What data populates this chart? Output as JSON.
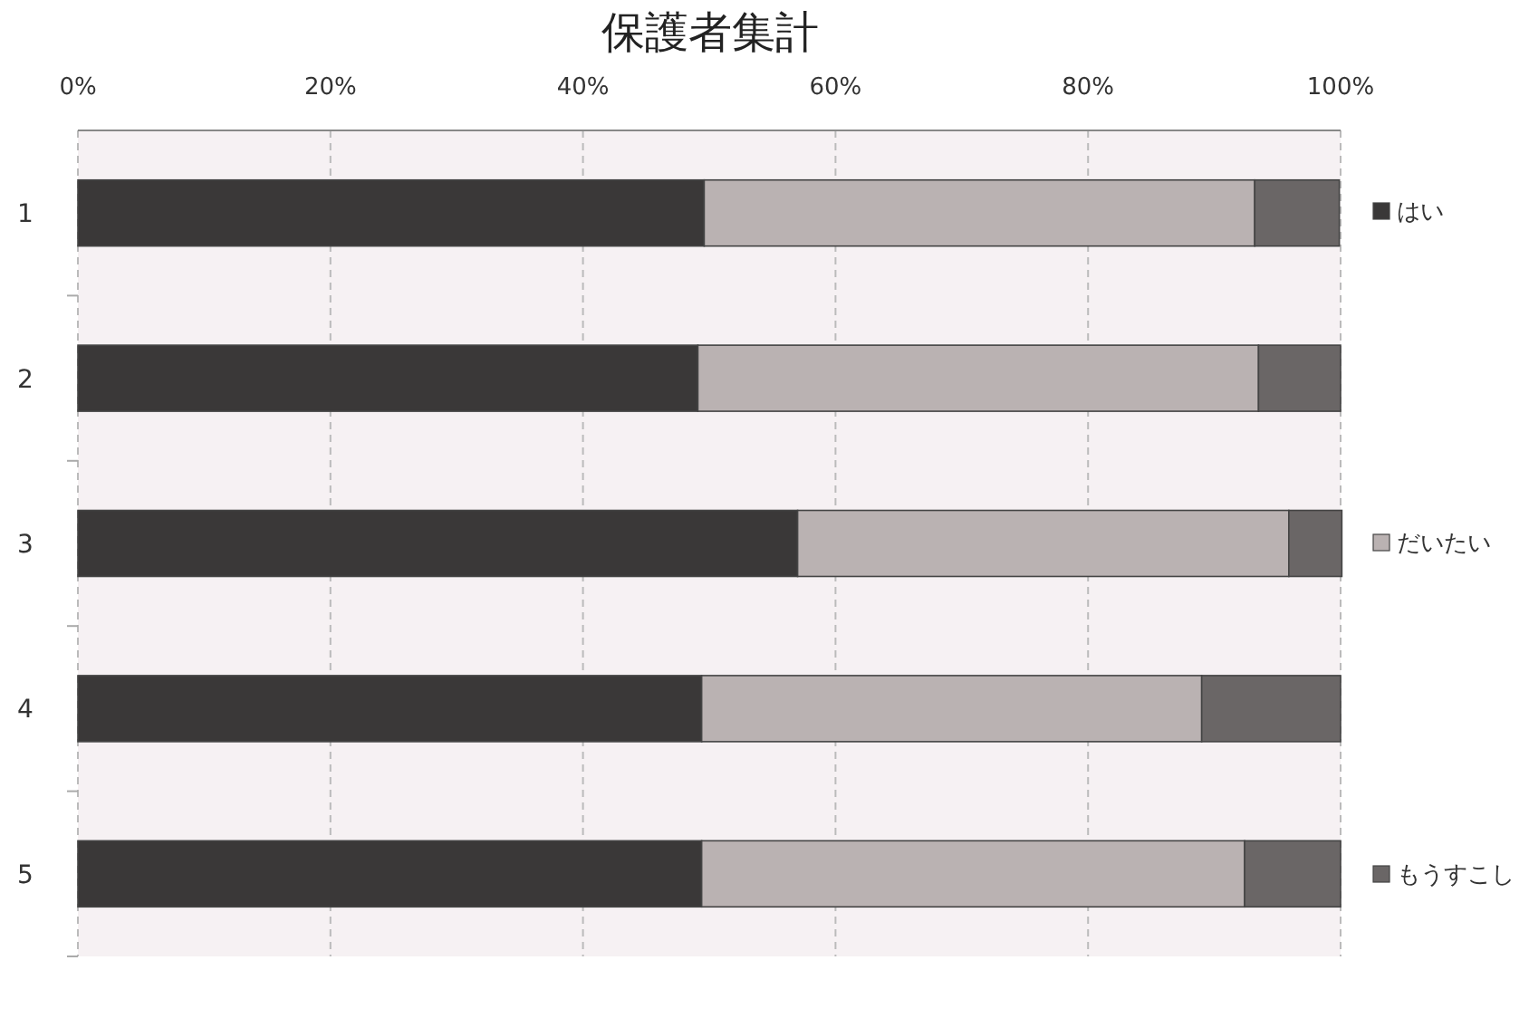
{
  "chart_data": {
    "type": "bar",
    "orientation": "horizontal",
    "stacked": true,
    "title": "保護者集計",
    "categories": [
      "1",
      "2",
      "3",
      "4",
      "5"
    ],
    "series": [
      {
        "name": "はい",
        "color": "#3a3838",
        "values": [
          49.6,
          49.1,
          57.0,
          49.4,
          49.4
        ]
      },
      {
        "name": "だいたい",
        "color": "#bab2b2",
        "values": [
          43.6,
          44.4,
          38.9,
          39.6,
          43.0
        ]
      },
      {
        "name": "もうすこし",
        "color": "#6a6666",
        "values": [
          6.7,
          6.5,
          4.2,
          11.0,
          7.6
        ]
      }
    ],
    "xlim": [
      0,
      100
    ],
    "xticks": [
      {
        "value": 0,
        "label": "0%"
      },
      {
        "value": 20,
        "label": "20%"
      },
      {
        "value": 40,
        "label": "40%"
      },
      {
        "value": 60,
        "label": "60%"
      },
      {
        "value": 80,
        "label": "80%"
      },
      {
        "value": 100,
        "label": "100%"
      }
    ],
    "grid": "x",
    "legend": "right"
  }
}
